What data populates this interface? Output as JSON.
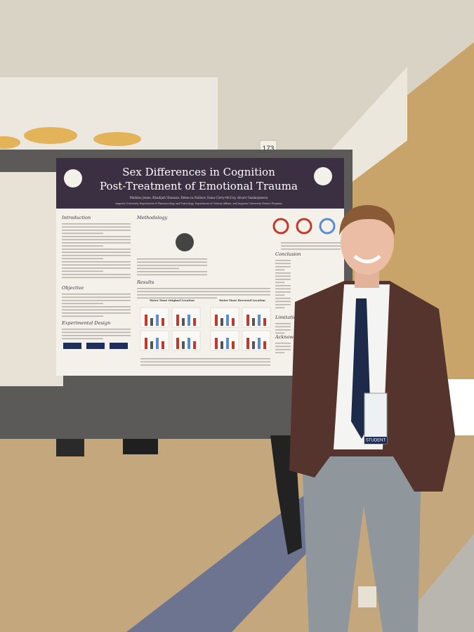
{
  "sign": "173",
  "poster": {
    "title_line1": "Sex Differences in Cognition",
    "title_line2": "Post-Treatment of Emotional Trauma",
    "authors": "Maddox Jones, Khadijah Shanazz, Rebecca Nalloor, Dana Curry-McCoy, Alvaro Vazdarjanova",
    "affiliation": "Augusta University Department of Pharmacology and Toxicology, Department of Veteran Affairs, and Augusta University Honors Program",
    "left_sections": [
      "Introduction",
      "Objective",
      "Experimental Design"
    ],
    "middle_sections": [
      "Methodology",
      "Results"
    ],
    "figure_titles": [
      "Water Maze Original Location",
      "Water Maze Reversed Location"
    ],
    "right_sections": [
      "Conclusion",
      "Limitations",
      "Acknowledgments"
    ]
  },
  "badge": "STUDENT"
}
